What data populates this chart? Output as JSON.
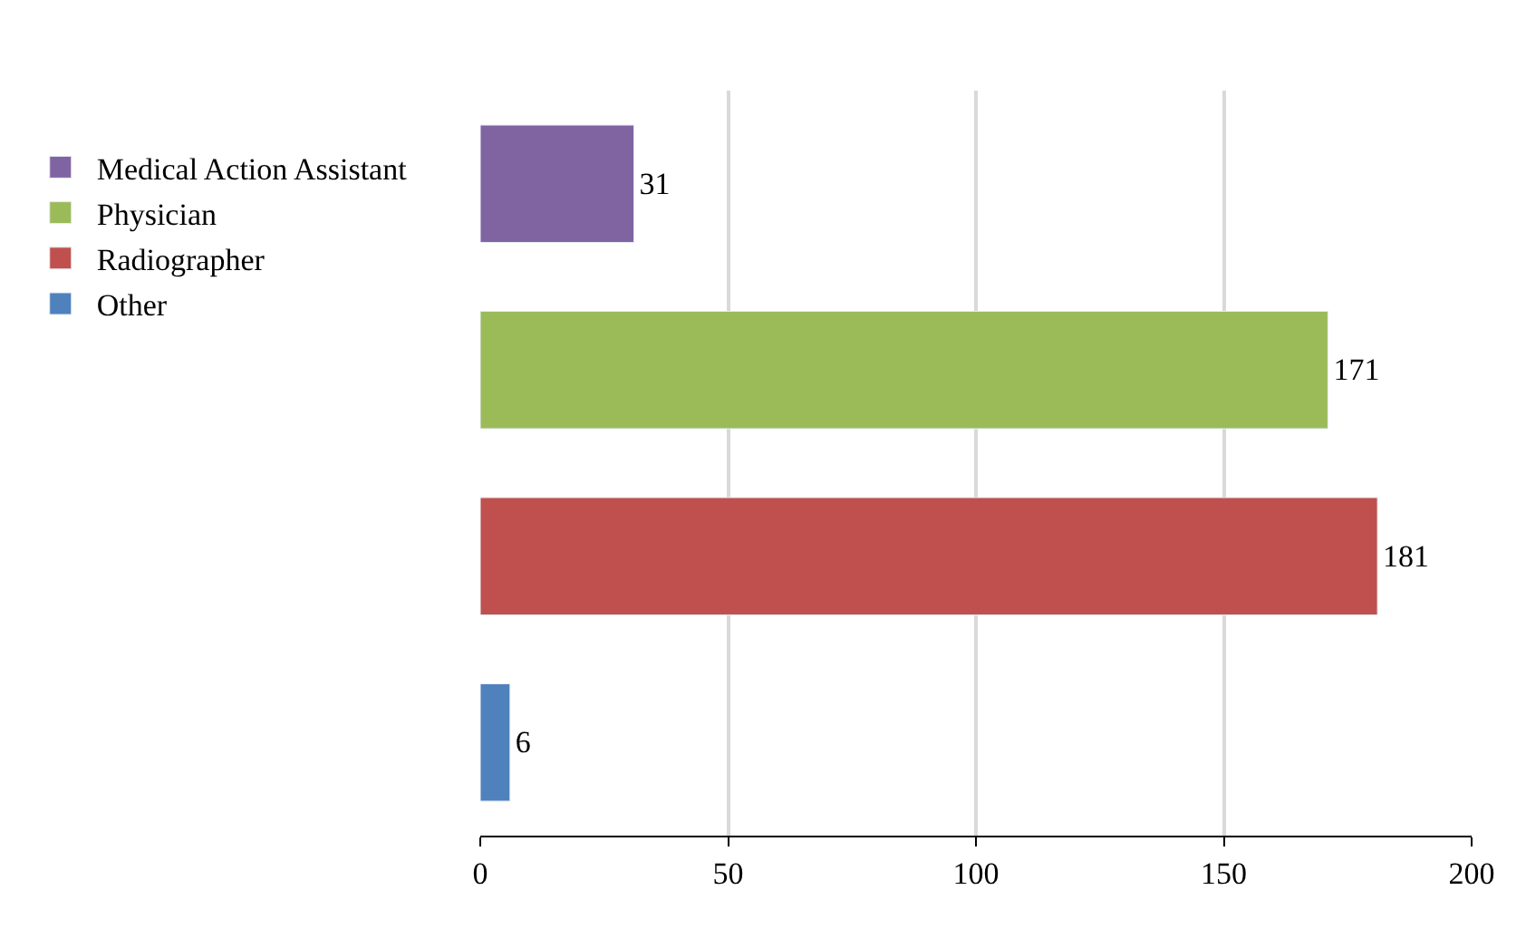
{
  "chart_data": {
    "type": "bar",
    "orientation": "horizontal",
    "categories": [
      null,
      null,
      null,
      null
    ],
    "series": [
      {
        "name": "Medical Action Assistant",
        "color": "#8064a2",
        "values": [
          31,
          null,
          null,
          null
        ]
      },
      {
        "name": "Physician",
        "color": "#9bbb59",
        "values": [
          null,
          171,
          null,
          null
        ]
      },
      {
        "name": "Radiographer",
        "color": "#c0504d",
        "values": [
          null,
          null,
          181,
          null
        ]
      },
      {
        "name": "Other",
        "color": "#4f81bd",
        "values": [
          null,
          null,
          null,
          6
        ]
      }
    ],
    "xlim": [
      0,
      200
    ],
    "xticks": [
      0,
      50,
      100,
      150,
      200
    ],
    "grid": "x",
    "legend": "left",
    "data_labels": true
  }
}
